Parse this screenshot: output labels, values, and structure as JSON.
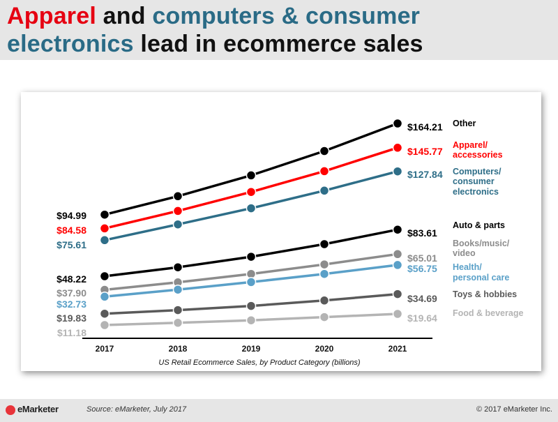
{
  "header": {
    "title_parts": [
      "Apparel",
      " and ",
      "computers & consumer",
      "electronics",
      " lead in ecommerce sales"
    ]
  },
  "footer": {
    "logo_text": "eMarketer",
    "source": "Source: eMarketer, July 2017",
    "copyright": "© 2017 eMarketer Inc."
  },
  "chart_data": {
    "type": "line",
    "xlabel": "US Retail Ecommerce Sales, by Product Category (billions)",
    "ylabel": "",
    "x": [
      "2017",
      "2018",
      "2019",
      "2020",
      "2021"
    ],
    "grid": false,
    "legend": "right-end labels",
    "series": [
      {
        "name": "Other",
        "color": "#000000",
        "values": [
          94.99,
          109.0,
          124.8,
          143.3,
          164.21
        ],
        "start_label": "$94.99",
        "end_label": "$164.21"
      },
      {
        "name": "Apparel/ accessories",
        "color": "#ff0000",
        "values": [
          84.58,
          97.8,
          112.2,
          128.0,
          145.77
        ],
        "start_label": "$84.58",
        "end_label": "$145.77"
      },
      {
        "name": "Computers/ consumer electronics",
        "color": "#2e6e88",
        "values": [
          75.61,
          87.6,
          99.8,
          113.2,
          127.84
        ],
        "start_label": "$75.61",
        "end_label": "$127.84"
      },
      {
        "name": "Auto & parts",
        "color": "#000000",
        "values": [
          48.22,
          55.0,
          63.0,
          72.6,
          83.61
        ],
        "start_label": "$48.22",
        "end_label": "$83.61"
      },
      {
        "name": "Books/music/ video",
        "color": "#8c8c8c",
        "values": [
          37.9,
          43.6,
          50.0,
          57.2,
          65.01
        ],
        "start_label": "$37.90",
        "end_label": "$65.01"
      },
      {
        "name": "Health/ personal care",
        "color": "#5aa0c8",
        "values": [
          32.73,
          38.1,
          43.8,
          50.0,
          56.75
        ],
        "start_label": "$32.73",
        "end_label": "$56.75"
      },
      {
        "name": "Toys & hobbies",
        "color": "#5a5a5a",
        "values": [
          19.83,
          22.5,
          25.7,
          29.8,
          34.69
        ],
        "start_label": "$19.83",
        "end_label": "$34.69"
      },
      {
        "name": "Food & beverage",
        "color": "#b4b4b4",
        "values": [
          11.18,
          12.9,
          14.8,
          17.2,
          19.64
        ],
        "start_label": "$11.18",
        "end_label": "$19.64"
      }
    ]
  }
}
